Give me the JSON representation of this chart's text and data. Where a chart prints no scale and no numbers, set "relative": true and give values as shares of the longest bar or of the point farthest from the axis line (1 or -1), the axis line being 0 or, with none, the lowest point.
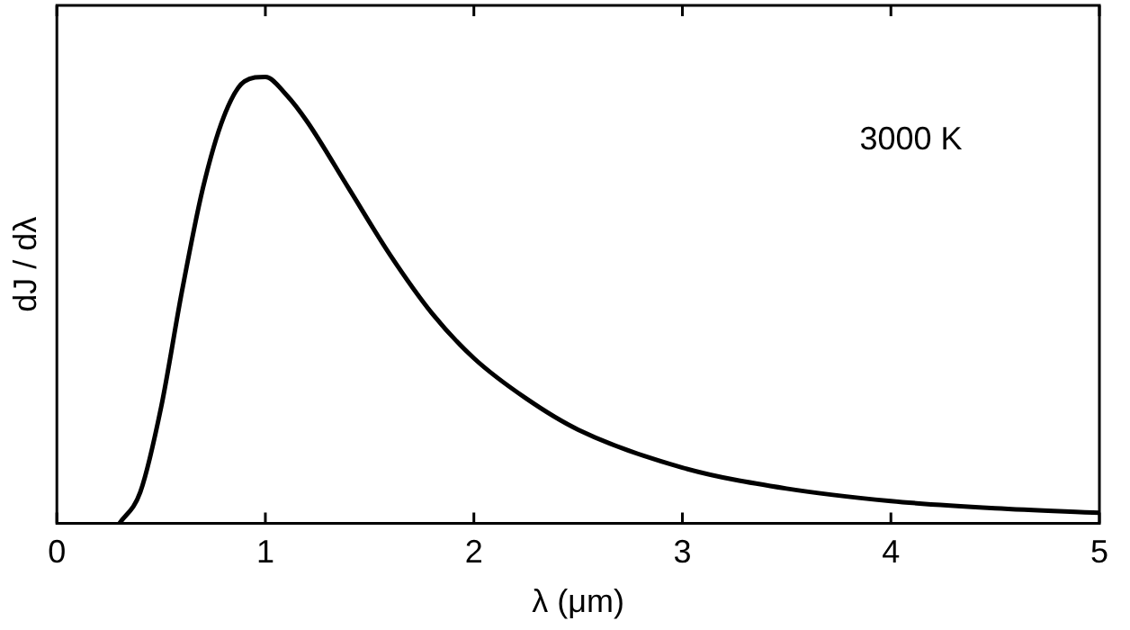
{
  "chart_data": {
    "type": "line",
    "xlabel": "λ (μm)",
    "ylabel": "dJ / dλ",
    "relative": true,
    "x": [
      0.3,
      0.4,
      0.5,
      0.6,
      0.7,
      0.8,
      0.9,
      1.0,
      1.1,
      1.2,
      1.4,
      1.6,
      1.8,
      2.0,
      2.25,
      2.5,
      3.0,
      3.5,
      4.0,
      4.5,
      5.0
    ],
    "series": [
      {
        "color": "#000000",
        "values": [
          0.0,
          0.07,
          0.26,
          0.52,
          0.75,
          0.91,
          0.99,
          1.0,
          0.96,
          0.9,
          0.75,
          0.6,
          0.47,
          0.37,
          0.28,
          0.21,
          0.125,
          0.078,
          0.05,
          0.034,
          0.024
        ]
      }
    ],
    "xlim": [
      0,
      5
    ],
    "xticks": [
      0,
      1,
      2,
      3,
      4,
      5
    ],
    "annotations": [
      "3000 K"
    ],
    "legend": false,
    "grid": false,
    "marker": "none",
    "line_style": "solid"
  }
}
